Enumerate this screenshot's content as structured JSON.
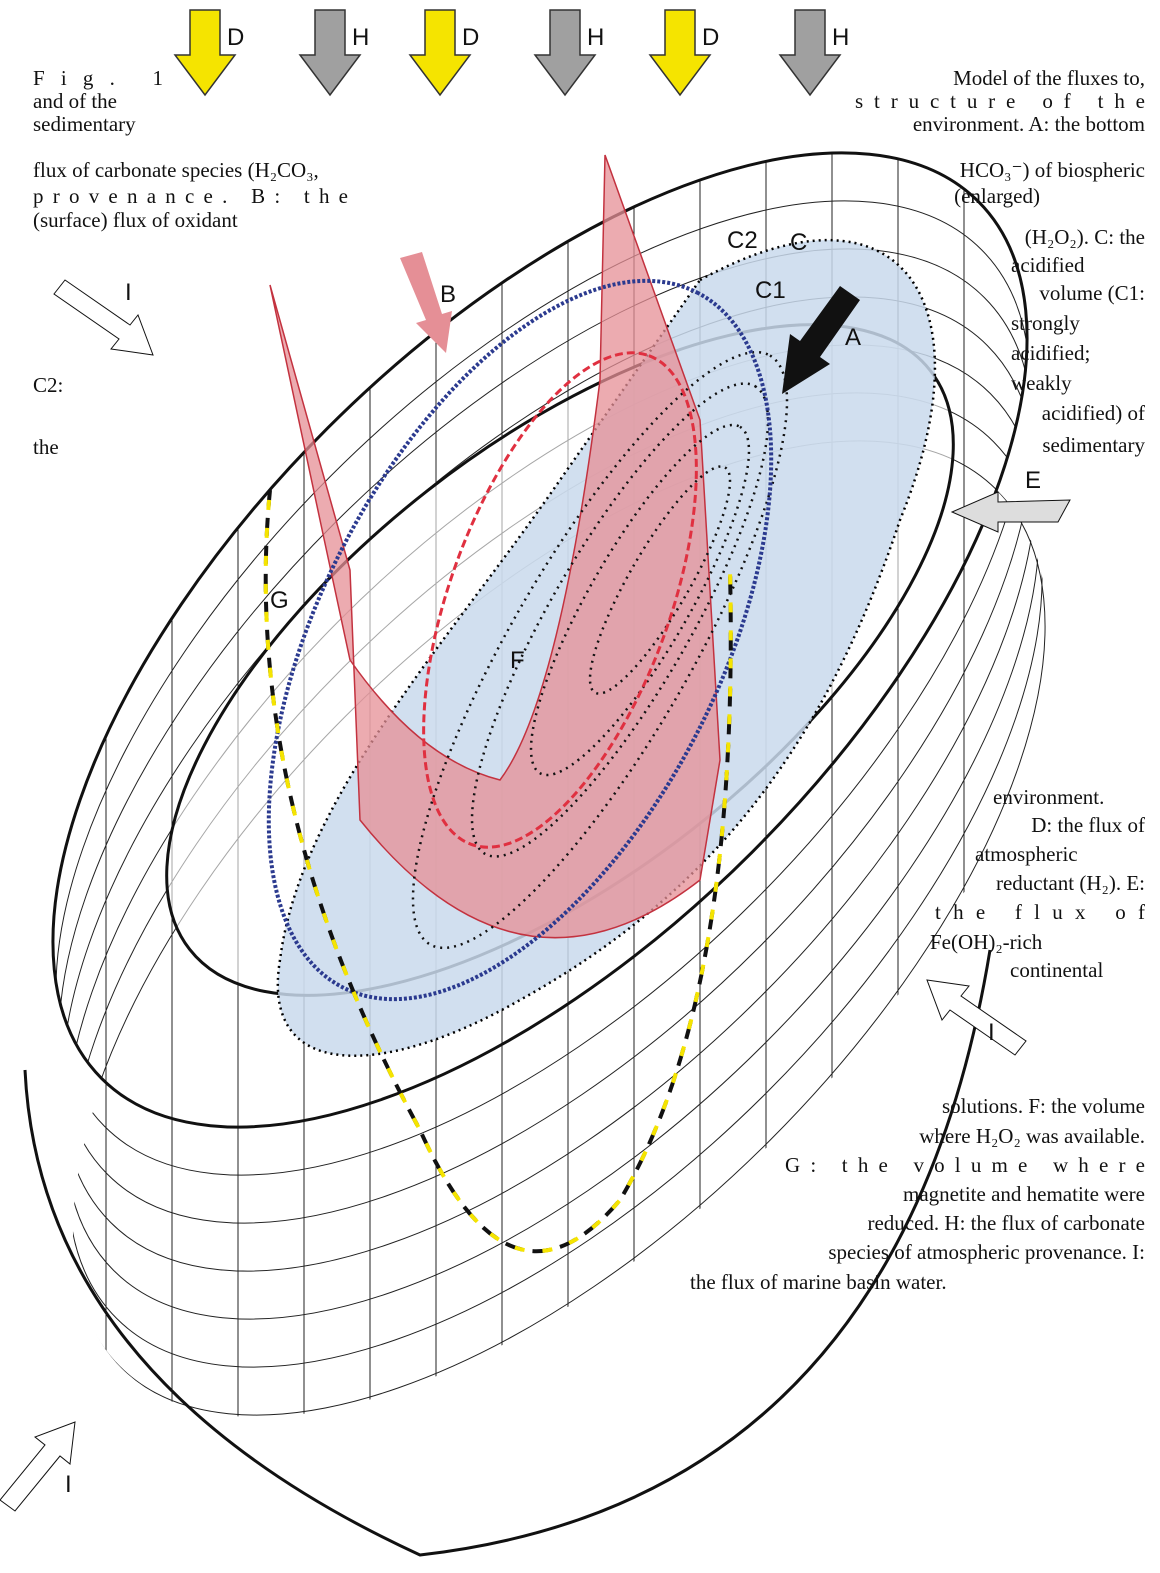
{
  "arrow_labels": [
    "D",
    "H",
    "D",
    "H",
    "D",
    "H"
  ],
  "labels": {
    "A": "A",
    "B": "B",
    "C": "C",
    "C1": "C1",
    "C2": "C2",
    "E": "E",
    "F": "F",
    "G": "G",
    "I": [
      "I",
      "I",
      "I"
    ]
  },
  "caption": {
    "left": [
      "Fig. 1",
      "and of the",
      "sedimentary",
      "flux of carbonate species (H₂CO₃,",
      "provenance. B: the",
      "(surface) flux of oxidant",
      "C2:",
      "the"
    ],
    "right": [
      "Model of the fluxes to,",
      "structure of the",
      "environment. A: the bottom",
      "HCO₃⁻) of biospheric",
      "(enlarged)",
      "(H₂O₂). C: the",
      "acidified",
      "volume (C1:",
      "strongly",
      "acidified;",
      "weakly",
      "acidified) of",
      "sedimentary"
    ],
    "bottom_right": [
      "environment.",
      "D: the flux of",
      "atmospheric",
      "reductant (H₂). E:",
      "the flux of",
      "Fe(OH)₂-rich",
      "continental",
      "solutions. F: the volume",
      "where H₂O₂ was available.",
      "G: the volume where",
      "magnetite and hematite were",
      "reduced. H: the flux of carbonate",
      "species of atmospheric provenance. I:",
      "the flux of marine basin water."
    ]
  }
}
